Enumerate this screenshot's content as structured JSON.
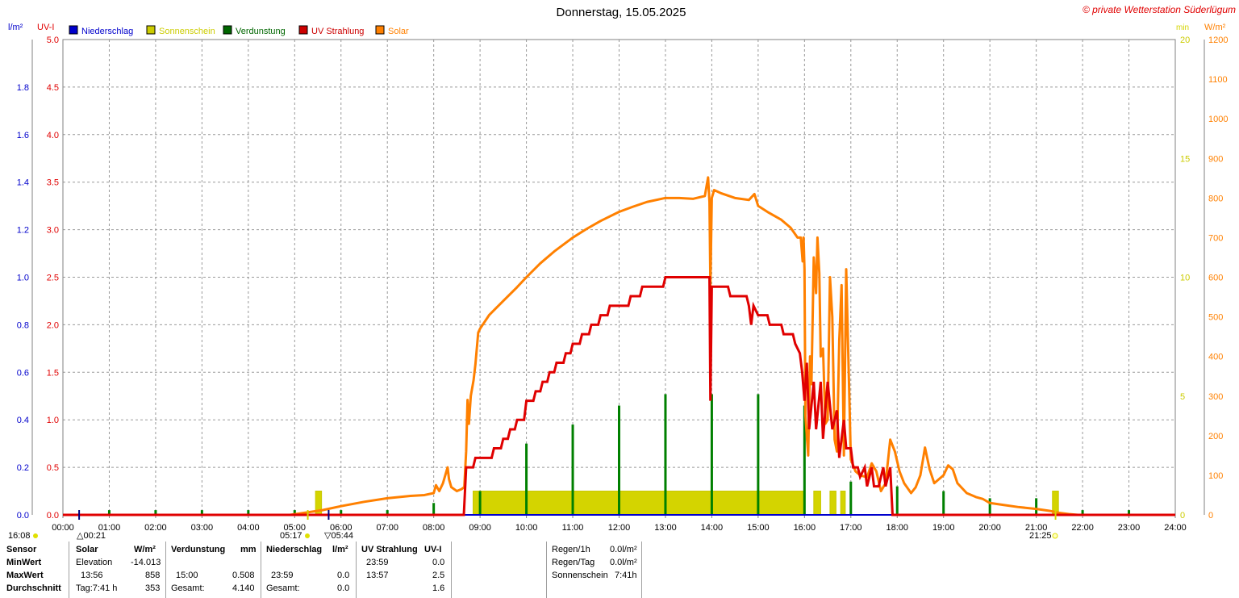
{
  "header": {
    "title": "Donnerstag, 15.05.2025",
    "copyright": "© private Wetterstation Süderlügum"
  },
  "axes": {
    "left1_unit": "l/m²",
    "left2_unit": "UV-I",
    "right1_unit": "min",
    "right2_unit": "W/m²",
    "rain_ticks": [
      "0.0",
      "0.2",
      "0.4",
      "0.6",
      "0.8",
      "1.0",
      "1.2",
      "1.4",
      "1.6",
      "1.8"
    ],
    "uv_ticks": [
      "0.0",
      "0.5",
      "1.0",
      "1.5",
      "2.0",
      "2.5",
      "3.0",
      "3.5",
      "4.0",
      "4.5",
      "5.0"
    ],
    "sun_ticks": [
      "0",
      "5",
      "10",
      "15",
      "20"
    ],
    "solar_ticks": [
      "0",
      "100",
      "200",
      "300",
      "400",
      "500",
      "600",
      "700",
      "800",
      "900",
      "1000",
      "1100",
      "1200"
    ],
    "time_ticks": [
      "00:00",
      "01:00",
      "02:00",
      "03:00",
      "04:00",
      "05:00",
      "06:00",
      "07:00",
      "08:00",
      "09:00",
      "10:00",
      "11:00",
      "12:00",
      "13:00",
      "14:00",
      "15:00",
      "16:00",
      "17:00",
      "18:00",
      "19:00",
      "20:00",
      "21:00",
      "22:00",
      "23:00",
      "24:00"
    ]
  },
  "legend": [
    {
      "label": "Niederschlag",
      "color": "#0000cc"
    },
    {
      "label": "Sonnenschein",
      "color": "#cccc00"
    },
    {
      "label": "Verdunstung",
      "color": "#006600"
    },
    {
      "label": "UV Strahlung",
      "color": "#cc0000"
    },
    {
      "label": "Solar",
      "color": "#ff8000"
    }
  ],
  "sun_events": {
    "moonset": "16:08",
    "moonrise": "00:21",
    "dawn": "05:17",
    "sunrise": "05:44",
    "sunset": "21:25"
  },
  "colors": {
    "rain": "#0000cc",
    "sunshine": "#d4d400",
    "evaporation": "#008000",
    "uv": "#e00000",
    "solar": "#ff8000",
    "grid": "#999999"
  },
  "chart_data": {
    "type": "line",
    "title": "Donnerstag, 15.05.2025",
    "x_unit": "hours",
    "xlim": [
      0,
      24
    ],
    "ylim_rain": [
      0,
      2
    ],
    "ylim_uv": [
      0,
      5
    ],
    "ylim_sunshine_min": [
      0,
      20
    ],
    "ylim_solar": [
      0,
      1200
    ],
    "series": [
      {
        "name": "Solar",
        "axis": "solar",
        "points": [
          [
            0,
            0
          ],
          [
            4.9,
            0
          ],
          [
            5.2,
            5
          ],
          [
            5.6,
            12
          ],
          [
            6.0,
            22
          ],
          [
            6.5,
            33
          ],
          [
            7.0,
            42
          ],
          [
            7.5,
            48
          ],
          [
            7.8,
            50
          ],
          [
            8.0,
            55
          ],
          [
            8.05,
            75
          ],
          [
            8.12,
            60
          ],
          [
            8.2,
            80
          ],
          [
            8.3,
            120
          ],
          [
            8.33,
            90
          ],
          [
            8.38,
            70
          ],
          [
            8.5,
            60
          ],
          [
            8.6,
            65
          ],
          [
            8.66,
            70
          ],
          [
            8.7,
            160
          ],
          [
            8.73,
            290
          ],
          [
            8.76,
            230
          ],
          [
            8.8,
            300
          ],
          [
            8.86,
            340
          ],
          [
            8.9,
            380
          ],
          [
            8.96,
            460
          ],
          [
            9.0,
            470
          ],
          [
            9.2,
            505
          ],
          [
            9.5,
            540
          ],
          [
            9.8,
            575
          ],
          [
            10.0,
            600
          ],
          [
            10.3,
            635
          ],
          [
            10.6,
            665
          ],
          [
            11.0,
            700
          ],
          [
            11.3,
            722
          ],
          [
            11.6,
            742
          ],
          [
            12.0,
            765
          ],
          [
            12.3,
            778
          ],
          [
            12.6,
            790
          ],
          [
            13.0,
            800
          ],
          [
            13.3,
            800
          ],
          [
            13.6,
            798
          ],
          [
            13.85,
            805
          ],
          [
            13.92,
            852
          ],
          [
            13.95,
            790
          ],
          [
            13.97,
            580
          ],
          [
            14.0,
            800
          ],
          [
            14.05,
            820
          ],
          [
            14.2,
            812
          ],
          [
            14.5,
            800
          ],
          [
            14.8,
            795
          ],
          [
            14.92,
            810
          ],
          [
            15.0,
            780
          ],
          [
            15.2,
            765
          ],
          [
            15.5,
            745
          ],
          [
            15.7,
            725
          ],
          [
            15.85,
            700
          ],
          [
            15.92,
            700
          ],
          [
            15.96,
            640
          ],
          [
            15.98,
            700
          ],
          [
            16.0,
            620
          ],
          [
            16.02,
            250
          ],
          [
            16.05,
            200
          ],
          [
            16.08,
            150
          ],
          [
            16.12,
            400
          ],
          [
            16.15,
            330
          ],
          [
            16.2,
            650
          ],
          [
            16.25,
            560
          ],
          [
            16.28,
            700
          ],
          [
            16.32,
            610
          ],
          [
            16.35,
            400
          ],
          [
            16.4,
            420
          ],
          [
            16.45,
            230
          ],
          [
            16.5,
            240
          ],
          [
            16.55,
            600
          ],
          [
            16.6,
            500
          ],
          [
            16.65,
            190
          ],
          [
            16.7,
            160
          ],
          [
            16.75,
            440
          ],
          [
            16.8,
            580
          ],
          [
            16.85,
            150
          ],
          [
            16.9,
            620
          ],
          [
            16.95,
            380
          ],
          [
            17.0,
            140
          ],
          [
            17.1,
            110
          ],
          [
            17.2,
            100
          ],
          [
            17.35,
            95
          ],
          [
            17.45,
            130
          ],
          [
            17.55,
            110
          ],
          [
            17.65,
            60
          ],
          [
            17.75,
            80
          ],
          [
            17.85,
            190
          ],
          [
            17.95,
            160
          ],
          [
            18.05,
            110
          ],
          [
            18.15,
            80
          ],
          [
            18.3,
            55
          ],
          [
            18.4,
            70
          ],
          [
            18.5,
            100
          ],
          [
            18.6,
            170
          ],
          [
            18.7,
            115
          ],
          [
            18.8,
            80
          ],
          [
            19.0,
            100
          ],
          [
            19.1,
            125
          ],
          [
            19.2,
            115
          ],
          [
            19.3,
            80
          ],
          [
            19.5,
            55
          ],
          [
            19.7,
            45
          ],
          [
            19.85,
            40
          ],
          [
            20.0,
            30
          ],
          [
            20.3,
            25
          ],
          [
            20.6,
            20
          ],
          [
            21.0,
            15
          ],
          [
            21.3,
            10
          ],
          [
            21.5,
            5
          ],
          [
            21.7,
            2
          ],
          [
            21.9,
            0
          ],
          [
            24,
            0
          ]
        ]
      },
      {
        "name": "UV Strahlung",
        "axis": "uv",
        "points": [
          [
            0,
            0
          ],
          [
            8.65,
            0
          ],
          [
            8.7,
            0.5
          ],
          [
            8.85,
            0.5
          ],
          [
            8.9,
            0.6
          ],
          [
            9.25,
            0.6
          ],
          [
            9.3,
            0.7
          ],
          [
            9.45,
            0.7
          ],
          [
            9.5,
            0.8
          ],
          [
            9.6,
            0.8
          ],
          [
            9.65,
            0.9
          ],
          [
            9.75,
            0.9
          ],
          [
            9.8,
            1.0
          ],
          [
            9.95,
            1.0
          ],
          [
            10.0,
            1.2
          ],
          [
            10.15,
            1.2
          ],
          [
            10.2,
            1.3
          ],
          [
            10.3,
            1.3
          ],
          [
            10.35,
            1.4
          ],
          [
            10.45,
            1.4
          ],
          [
            10.5,
            1.5
          ],
          [
            10.6,
            1.5
          ],
          [
            10.65,
            1.6
          ],
          [
            10.8,
            1.6
          ],
          [
            10.85,
            1.7
          ],
          [
            10.95,
            1.7
          ],
          [
            11.0,
            1.8
          ],
          [
            11.15,
            1.8
          ],
          [
            11.2,
            1.9
          ],
          [
            11.35,
            1.9
          ],
          [
            11.4,
            2.0
          ],
          [
            11.55,
            2.0
          ],
          [
            11.6,
            2.1
          ],
          [
            11.75,
            2.1
          ],
          [
            11.8,
            2.2
          ],
          [
            12.2,
            2.2
          ],
          [
            12.25,
            2.3
          ],
          [
            12.45,
            2.3
          ],
          [
            12.5,
            2.4
          ],
          [
            12.95,
            2.4
          ],
          [
            13.0,
            2.5
          ],
          [
            13.95,
            2.5
          ],
          [
            13.97,
            1.2
          ],
          [
            14.0,
            2.4
          ],
          [
            14.35,
            2.4
          ],
          [
            14.4,
            2.3
          ],
          [
            14.75,
            2.3
          ],
          [
            14.8,
            2.2
          ],
          [
            14.85,
            2.0
          ],
          [
            14.9,
            2.2
          ],
          [
            15.0,
            2.1
          ],
          [
            15.2,
            2.1
          ],
          [
            15.25,
            2.0
          ],
          [
            15.5,
            2.0
          ],
          [
            15.55,
            1.9
          ],
          [
            15.75,
            1.9
          ],
          [
            15.8,
            1.8
          ],
          [
            15.9,
            1.7
          ],
          [
            15.95,
            1.5
          ],
          [
            16.0,
            1.2
          ],
          [
            16.05,
            1.6
          ],
          [
            16.1,
            0.9
          ],
          [
            16.2,
            1.4
          ],
          [
            16.25,
            0.9
          ],
          [
            16.35,
            1.4
          ],
          [
            16.4,
            0.8
          ],
          [
            16.5,
            1.4
          ],
          [
            16.6,
            0.9
          ],
          [
            16.7,
            1.1
          ],
          [
            16.75,
            0.6
          ],
          [
            16.85,
            1.0
          ],
          [
            16.9,
            0.7
          ],
          [
            17.0,
            0.7
          ],
          [
            17.05,
            0.5
          ],
          [
            17.15,
            0.5
          ],
          [
            17.2,
            0.4
          ],
          [
            17.3,
            0.5
          ],
          [
            17.35,
            0.3
          ],
          [
            17.45,
            0.5
          ],
          [
            17.5,
            0.3
          ],
          [
            17.6,
            0.3
          ],
          [
            17.7,
            0.5
          ],
          [
            17.75,
            0.3
          ],
          [
            17.85,
            0.5
          ],
          [
            17.9,
            0.0
          ],
          [
            24,
            0
          ]
        ]
      },
      {
        "name": "Sonnenschein",
        "axis": "sunshine",
        "points": [
          [
            5.45,
            0
          ],
          [
            5.45,
            1
          ],
          [
            5.58,
            1
          ],
          [
            5.58,
            0
          ],
          [
            8.85,
            0
          ],
          [
            8.85,
            1
          ],
          [
            15.98,
            1
          ],
          [
            15.98,
            0
          ],
          [
            16.2,
            0
          ],
          [
            16.2,
            1
          ],
          [
            16.35,
            1
          ],
          [
            16.35,
            0
          ],
          [
            16.55,
            0
          ],
          [
            16.55,
            1
          ],
          [
            16.68,
            1
          ],
          [
            16.68,
            0
          ],
          [
            16.78,
            0
          ],
          [
            16.78,
            1
          ],
          [
            16.88,
            1
          ],
          [
            16.88,
            0
          ],
          [
            21.35,
            0
          ],
          [
            21.35,
            1
          ],
          [
            21.48,
            1
          ],
          [
            21.48,
            0
          ]
        ]
      },
      {
        "name": "Verdunstung",
        "axis": "rain",
        "bars": [
          [
            1,
            0.02
          ],
          [
            2,
            0.02
          ],
          [
            3,
            0.02
          ],
          [
            4,
            0.02
          ],
          [
            5,
            0.02
          ],
          [
            6,
            0.02
          ],
          [
            7,
            0.02
          ],
          [
            8,
            0.05
          ],
          [
            9,
            0.1
          ],
          [
            10,
            0.3
          ],
          [
            11,
            0.38
          ],
          [
            12,
            0.46
          ],
          [
            13,
            0.508
          ],
          [
            14,
            0.508
          ],
          [
            15,
            0.508
          ],
          [
            16,
            0.46
          ],
          [
            17,
            0.14
          ],
          [
            18,
            0.12
          ],
          [
            19,
            0.1
          ],
          [
            20,
            0.07
          ],
          [
            21,
            0.07
          ],
          [
            22,
            0.02
          ],
          [
            23,
            0.02
          ]
        ]
      },
      {
        "name": "Niederschlag",
        "axis": "rain",
        "points": [
          [
            0,
            0
          ],
          [
            24,
            0
          ]
        ]
      }
    ]
  },
  "stats": {
    "sensor_header": "Sensor",
    "rows": [
      "MinWert",
      "MaxWert",
      "Durchschnitt"
    ],
    "solar": {
      "label": "Solar",
      "unit": "W/m²",
      "min_time": "Elevation",
      "min_val": "-14.013",
      "max_time": "13:56",
      "max_val": "858",
      "avg_time": "Tag:7:41 h",
      "avg_val": "353"
    },
    "evap": {
      "label": "Verdunstung",
      "unit": "mm",
      "max_time": "15:00",
      "max_val": "0.508",
      "avg_time": "Gesamt:",
      "avg_val": "4.140"
    },
    "rain": {
      "label": "Niederschlag",
      "unit": "l/m²",
      "max_time": "23:59",
      "max_val": "0.0",
      "avg_time": "Gesamt:",
      "avg_val": "0.0"
    },
    "uv": {
      "label": "UV Strahlung",
      "unit": "UV-I",
      "min_time": "23:59",
      "min_val": "0.0",
      "max_time": "13:57",
      "max_val": "2.5",
      "avg_val": "1.6"
    },
    "summary": [
      {
        "label": "Regen/1h",
        "value": "0.0l/m²"
      },
      {
        "label": "Regen/Tag",
        "value": "0.0l/m²"
      },
      {
        "label": "Sonnenschein",
        "value": "7:41h"
      }
    ]
  }
}
